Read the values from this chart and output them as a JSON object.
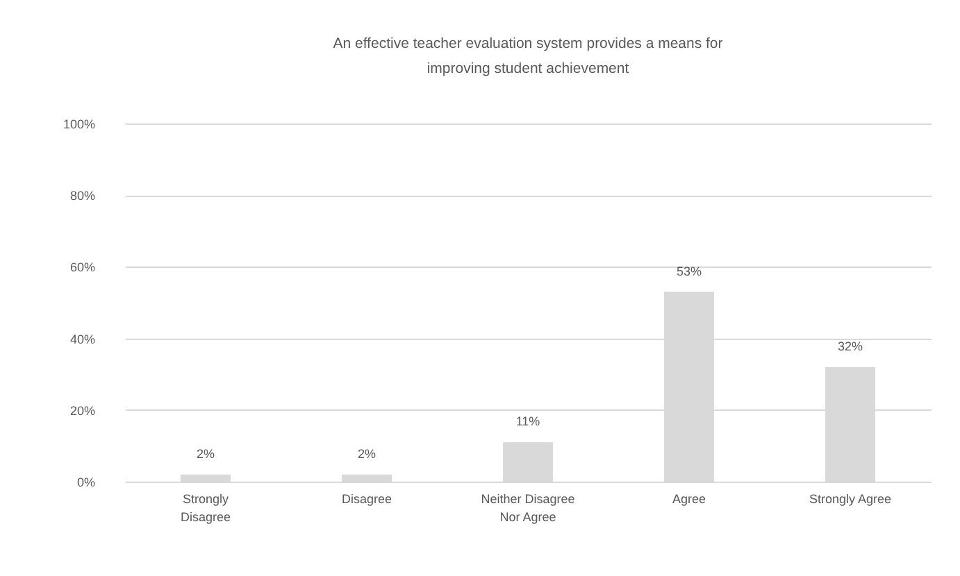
{
  "chart_data": {
    "type": "bar",
    "title": "An effective teacher evaluation system provides a means for improving student achievement",
    "categories": [
      "Strongly Disagree",
      "Disagree",
      "Neither Disagree Nor Agree",
      "Agree",
      "Strongly Agree"
    ],
    "values": [
      2,
      2,
      11,
      53,
      32
    ],
    "value_labels": [
      "2%",
      "2%",
      "11%",
      "53%",
      "32%"
    ],
    "color": "#d9d9d9",
    "ylim": [
      0,
      100
    ],
    "yticks": [
      {
        "value": 0,
        "label": "0%"
      },
      {
        "value": 20,
        "label": "20%"
      },
      {
        "value": 40,
        "label": "40%"
      },
      {
        "value": 60,
        "label": "60%"
      },
      {
        "value": 80,
        "label": "80%"
      },
      {
        "value": 100,
        "label": "100%"
      }
    ],
    "grid": "y"
  }
}
